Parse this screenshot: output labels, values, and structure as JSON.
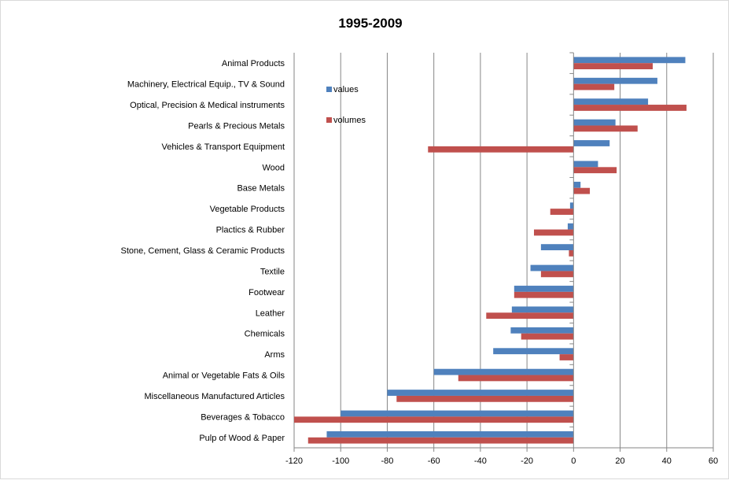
{
  "chart_data": {
    "type": "bar",
    "orientation": "horizontal",
    "title": "1995-2009",
    "categories": [
      "Animal Products",
      "Machinery, Electrical Equip., TV & Sound",
      "Optical, Precision & Medical instruments",
      "Pearls & Precious Metals",
      "Vehicles & Transport Equipment",
      "Wood",
      "Base Metals",
      "Vegetable Products",
      "Plactics & Rubber",
      "Stone, Cement, Glass & Ceramic Products",
      "Textile",
      "Footwear",
      "Leather",
      "Chemicals",
      "Arms",
      "Animal or Vegetable Fats & Oils",
      "Miscellaneous Manufactured Articles",
      "Beverages & Tobacco",
      "Pulp of Wood & Paper"
    ],
    "series": [
      {
        "name": "values",
        "color": "#4f81bd",
        "values": [
          48,
          36,
          32,
          18,
          15.5,
          10.5,
          3,
          -1.5,
          -2.5,
          -14,
          -18.5,
          -25.5,
          -26.5,
          -27,
          -34.5,
          -60,
          -80,
          -100,
          -106
        ]
      },
      {
        "name": "volumes",
        "color": "#c0504d",
        "values": [
          34,
          17.5,
          48.5,
          27.5,
          -62.5,
          18.5,
          7,
          -10,
          -17,
          -2,
          -14,
          -25.5,
          -37.5,
          -22.5,
          -6,
          -49.5,
          -76,
          -120,
          -114
        ]
      }
    ],
    "xlim": [
      -120,
      60
    ],
    "xticks": [
      -120,
      -100,
      -80,
      -60,
      -40,
      -20,
      0,
      20,
      40,
      60
    ],
    "grid": "vertical",
    "legend_position": "upper-middle"
  }
}
